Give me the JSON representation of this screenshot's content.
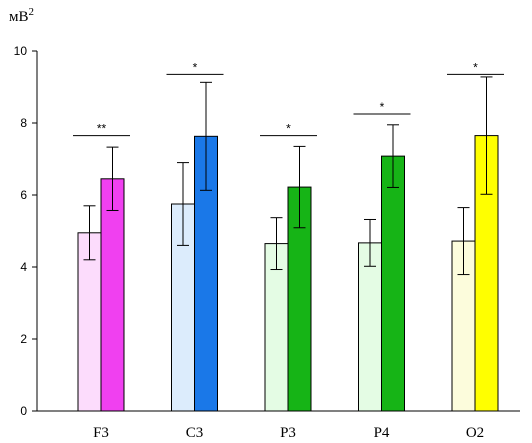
{
  "chart_data": {
    "type": "bar",
    "ylabel": "мВ",
    "ylabel_superscript": "2",
    "ylim": [
      0,
      10
    ],
    "yticks": [
      "0",
      "2",
      "4",
      "6",
      "8",
      "10"
    ],
    "categories": [
      "F3",
      "C3",
      "P3",
      "P4",
      "O2"
    ],
    "series": [
      {
        "values": [
          4.95,
          5.75,
          4.65,
          4.67,
          4.72
        ],
        "errors": [
          0.75,
          1.15,
          0.72,
          0.65,
          0.93
        ],
        "colors": [
          "#fcdcfc",
          "#dcecfc",
          "#e4fce4",
          "#e4fce4",
          "#fcfcdc"
        ]
      },
      {
        "values": [
          6.45,
          7.63,
          6.22,
          7.08,
          7.65
        ],
        "errors": [
          0.88,
          1.5,
          1.13,
          0.87,
          1.63
        ],
        "colors": [
          "#f040f0",
          "#1a78e8",
          "#16b416",
          "#16b416",
          "#ffff00"
        ]
      }
    ],
    "significance": [
      {
        "category": "F3",
        "label": "**",
        "y": 7.65
      },
      {
        "category": "C3",
        "label": "*",
        "y": 9.35
      },
      {
        "category": "P3",
        "label": "*",
        "y": 7.65
      },
      {
        "category": "P4",
        "label": "*",
        "y": 8.25
      },
      {
        "category": "O2",
        "label": "*",
        "y": 9.35
      }
    ],
    "grid": false,
    "legend": "none"
  }
}
